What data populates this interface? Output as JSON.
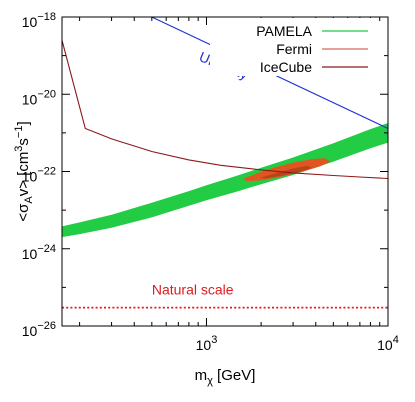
{
  "chart_data": {
    "type": "line",
    "xlabel_main": "m",
    "xlabel_sub": "χ",
    "xlabel_unit": " [GeV]",
    "ylabel_main": "<σ",
    "ylabel_sub": "A",
    "ylabel_rest": "v> [cm",
    "ylabel_sup1": "3",
    "ylabel_mid": "s",
    "ylabel_sup2": "−1",
    "ylabel_end": "]",
    "x_scale": "log",
    "y_scale": "log",
    "xlim": [
      160,
      10000
    ],
    "ylim": [
      1e-26,
      1e-18
    ],
    "x_ticks": [
      {
        "value": 1000,
        "base": "10",
        "exp": "3"
      },
      {
        "value": 10000,
        "base": "10",
        "exp": "4"
      }
    ],
    "y_ticks": [
      {
        "value": 1e-26,
        "base": "10",
        "exp": "−26"
      },
      {
        "value": 1e-24,
        "base": "10",
        "exp": "−24"
      },
      {
        "value": 1e-22,
        "base": "10",
        "exp": "−22"
      },
      {
        "value": 1e-20,
        "base": "10",
        "exp": "−20"
      },
      {
        "value": 1e-18,
        "base": "10",
        "exp": "−18"
      }
    ],
    "legend": {
      "placement": "top-right",
      "entries": [
        {
          "label": "PAMELA",
          "color": "#22cc44"
        },
        {
          "label": "Fermi",
          "color": "#d46a5a"
        },
        {
          "label": "IceCube",
          "color": "#8b1a1a"
        }
      ]
    },
    "series": [
      {
        "name": "IceCube",
        "kind": "line",
        "color": "#8b1a1a",
        "x": [
          160,
          215,
          300,
          500,
          800,
          1200,
          2000,
          3000,
          5000,
          7000,
          10000
        ],
        "y": [
          2.5e-19,
          1.3e-21,
          7e-22,
          3.3e-22,
          2e-22,
          1.45e-22,
          1.1e-22,
          9.2e-23,
          7.9e-23,
          7.2e-23,
          6.6e-23
        ]
      },
      {
        "name": "PAMELA",
        "kind": "band",
        "color": "#22cc44",
        "x": [
          160,
          200,
          300,
          500,
          800,
          1000,
          1500,
          2000,
          3000,
          5000,
          8000,
          10000
        ],
        "y_low": [
          2e-24,
          2.4e-24,
          3.5e-24,
          6.5e-24,
          1.3e-23,
          1.8e-23,
          3.1e-23,
          4.7e-23,
          8.1e-23,
          1.8e-22,
          4e-22,
          5.6e-22
        ],
        "y_high": [
          3.8e-24,
          4.8e-24,
          7.6e-24,
          1.55e-23,
          3.1e-23,
          4.4e-23,
          8e-23,
          1.25e-22,
          2.3e-22,
          5.4e-22,
          1.25e-21,
          1.8e-21
        ]
      },
      {
        "name": "Fermi",
        "kind": "region",
        "color": "#e05520",
        "inner_color": "#b8441a",
        "outline": [
          [
            1600,
            6.5e-23
          ],
          [
            1900,
            9e-23
          ],
          [
            2400,
            1.3e-22
          ],
          [
            3000,
            1.7e-22
          ],
          [
            3800,
            2.1e-22
          ],
          [
            4500,
            2.2e-22
          ],
          [
            4800,
            1.8e-22
          ],
          [
            4200,
            1.35e-22
          ],
          [
            3400,
            1e-22
          ],
          [
            2600,
            7.4e-23
          ],
          [
            2000,
            5.9e-23
          ],
          [
            1650,
            5.6e-23
          ]
        ],
        "inner": [
          [
            2000,
            7e-23
          ],
          [
            2500,
            9.5e-23
          ],
          [
            3000,
            1.2e-22
          ],
          [
            3600,
            1.4e-22
          ],
          [
            3800,
            1.25e-22
          ],
          [
            3300,
            1e-22
          ],
          [
            2700,
            8e-23
          ],
          [
            2100,
            6.6e-23
          ]
        ]
      },
      {
        "name": "Unitarity",
        "kind": "line",
        "color": "#1f2fd6",
        "x": [
          500,
          10000
        ],
        "y": [
          1e-18,
          1.3e-21
        ]
      },
      {
        "name": "Natural scale",
        "kind": "dotted-line",
        "color": "#e01b1b",
        "x": [
          160,
          10000
        ],
        "y": [
          3e-26,
          3e-26
        ]
      }
    ],
    "annotations": [
      {
        "text": "Unitarity",
        "color": "#1f2fd6",
        "x": 900,
        "y": 7.5e-20,
        "rotate": 22
      },
      {
        "text": "Natural scale",
        "color": "#e01b1b",
        "x": 500,
        "y": 6.5e-26,
        "rotate": 0
      }
    ]
  }
}
